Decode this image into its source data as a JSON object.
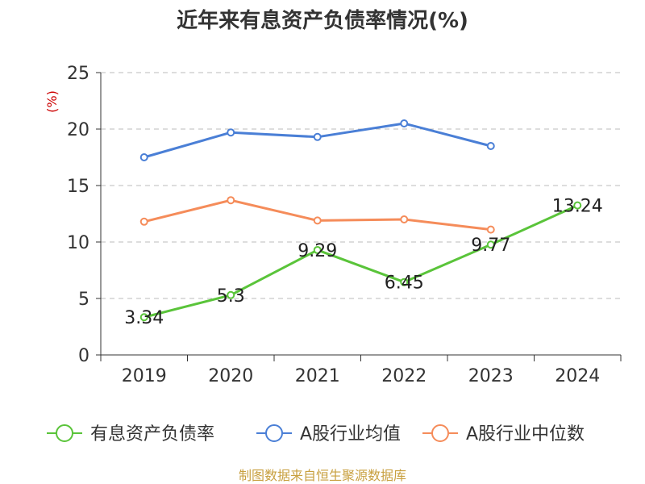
{
  "chart_data": {
    "type": "line",
    "title": "近年来有息资产负债率情况(%)",
    "ylabel": "(%)",
    "xlabel": "",
    "categories": [
      "2019",
      "2020",
      "2021",
      "2022",
      "2023",
      "2024"
    ],
    "ylim": [
      0,
      25
    ],
    "yticks": [
      0,
      5,
      10,
      15,
      20,
      25
    ],
    "grid": "horizontal dashed",
    "legend_position": "bottom",
    "series": [
      {
        "name": "有息资产负债率",
        "color": "#5ac43a",
        "values": [
          3.34,
          5.3,
          9.29,
          6.45,
          9.77,
          13.24
        ],
        "labels": [
          "3.34",
          "5.3",
          "9.29",
          "6.45",
          "9.77",
          "13.24"
        ]
      },
      {
        "name": "A股行业均值",
        "color": "#4a7fd6",
        "values": [
          17.5,
          19.7,
          19.3,
          20.5,
          18.5,
          null
        ]
      },
      {
        "name": "A股行业中位数",
        "color": "#f58c5a",
        "values": [
          11.8,
          13.7,
          11.9,
          12.0,
          11.1,
          null
        ]
      }
    ],
    "source": "制图数据来自恒生聚源数据库"
  }
}
